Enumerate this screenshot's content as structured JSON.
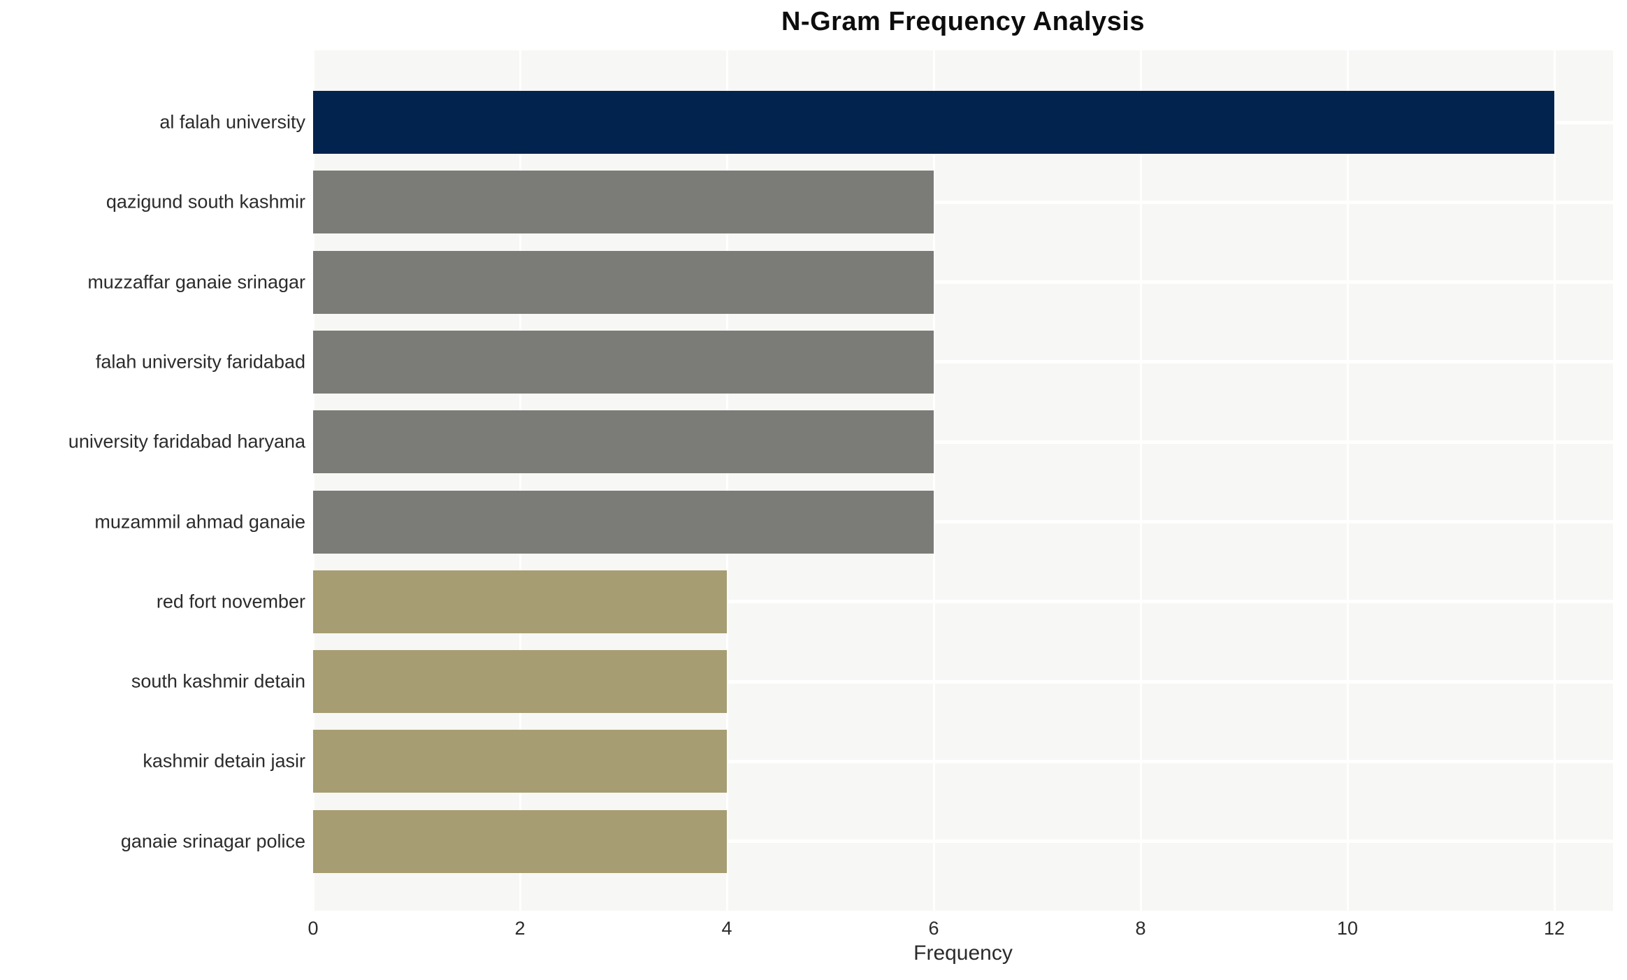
{
  "chart_data": {
    "type": "bar",
    "orientation": "horizontal",
    "title": "N-Gram Frequency Analysis",
    "xlabel": "Frequency",
    "ylabel": "",
    "categories": [
      "al falah university",
      "qazigund south kashmir",
      "muzzaffar ganaie srinagar",
      "falah university faridabad",
      "university faridabad haryana",
      "muzammil ahmad ganaie",
      "red fort november",
      "south kashmir detain",
      "kashmir detain jasir",
      "ganaie srinagar police"
    ],
    "values": [
      12,
      6,
      6,
      6,
      6,
      6,
      4,
      4,
      4,
      4
    ],
    "bar_colors": [
      "#02234e",
      "#7b7b77",
      "#7b7b77",
      "#7b7b77",
      "#7b7b77",
      "#7b7b77",
      "#a69d72",
      "#a69d72",
      "#a69d72",
      "#a69d72"
    ],
    "xticks": [
      0,
      2,
      4,
      6,
      8,
      10,
      12
    ],
    "xlim": [
      0,
      12.57
    ],
    "grid": true,
    "legend": false,
    "plot_background": "#f7f7f5",
    "gridline_color": "#ffffff",
    "palette": {
      "highest": "#02234e",
      "middle": "#7b7b77",
      "lowest": "#a69d72"
    }
  }
}
